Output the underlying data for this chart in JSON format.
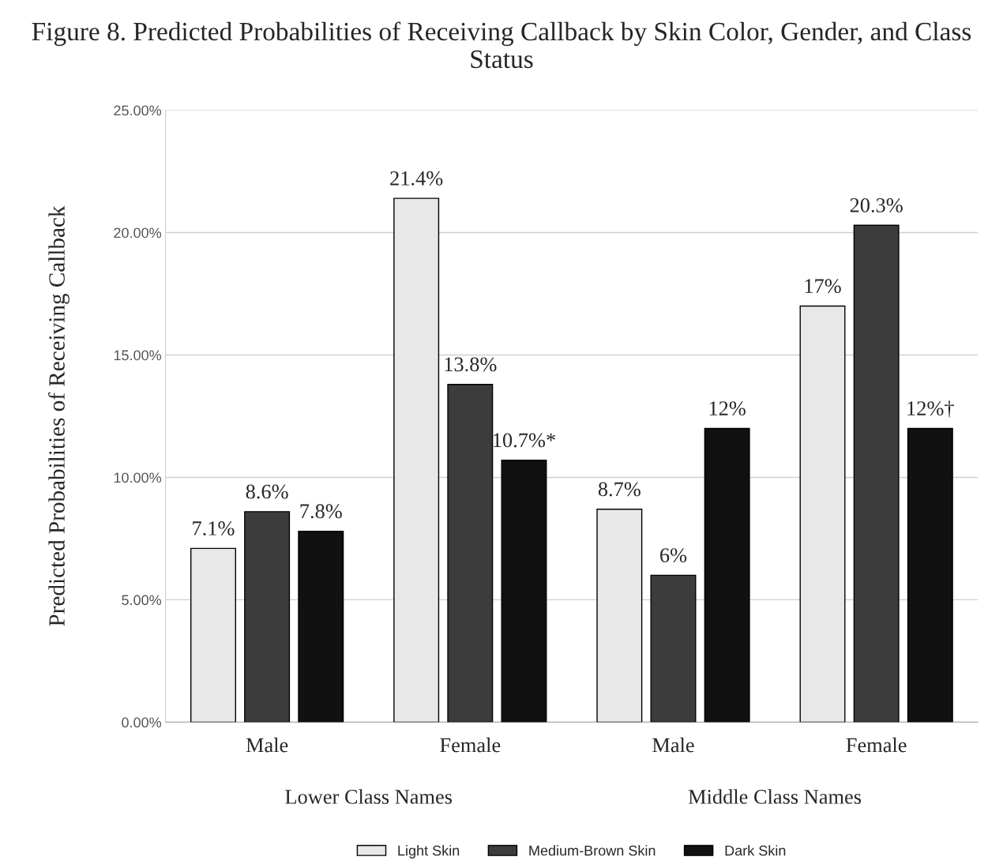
{
  "chart_data": {
    "type": "bar",
    "title": "Figure 8. Predicted Probabilities of Receiving Callback by Skin Color, Gender, and Class Status",
    "ylabel": "Predicted Probabilities of Receiving Callback",
    "categories": [
      "Male",
      "Female",
      "Male",
      "Female"
    ],
    "annotations": [
      "Lower Class Names",
      "Middle Class Names"
    ],
    "series": [
      {
        "name": "Light Skin",
        "color": "#e8e8e8",
        "values": [
          7.1,
          21.4,
          8.7,
          17
        ],
        "value_labels": [
          "7.1%",
          "21.4%",
          "8.7%",
          "17%"
        ]
      },
      {
        "name": "Medium-Brown Skin",
        "color": "#3c3c3c",
        "values": [
          8.6,
          13.8,
          6,
          20.3
        ],
        "value_labels": [
          "8.6%",
          "13.8%",
          "6%",
          "20.3%"
        ]
      },
      {
        "name": "Dark Skin",
        "color": "#111111",
        "values": [
          7.8,
          10.7,
          12,
          12
        ],
        "value_labels": [
          "7.8%",
          "10.7%*",
          "12%",
          "12%†"
        ]
      }
    ],
    "ylim": [
      0,
      25
    ],
    "yticks": [
      {
        "value": 0,
        "label": "0.00%"
      },
      {
        "value": 5,
        "label": "5.00%"
      },
      {
        "value": 10,
        "label": "10.00%"
      },
      {
        "value": 15,
        "label": "15.00%"
      },
      {
        "value": 20,
        "label": "20.00%"
      },
      {
        "value": 25,
        "label": "25.00%"
      }
    ],
    "grid": "y",
    "legend": "bottom"
  }
}
